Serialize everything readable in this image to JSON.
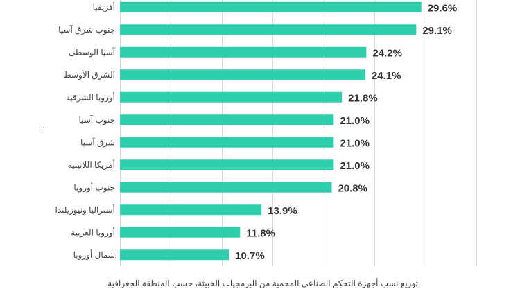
{
  "colors": {
    "bar": "#2fcfad",
    "grid": "#d9d9d9",
    "label": "#404040",
    "value": "#333333"
  },
  "caption": "توزيع نسب أجهزة التحكم الصناعي المحمية من البرمجيات الخبيثة، حسب المنطقة الجغرافية",
  "chart_data": {
    "type": "bar",
    "orientation": "horizontal",
    "categories": [
      "أفريقيا",
      "جنوب شرق آسيا",
      "آسيا الوسطى",
      "الشرق الأوسط",
      "أوروبا الشرقية",
      "جنوب آسيا",
      "شرق آسيا",
      "أمريكا اللاتينية",
      "جنوب أوروبا",
      "أستراليا ونيوزيلندا",
      "أوروبا الغربية",
      "شمال أوروبا"
    ],
    "values": [
      29.6,
      29.1,
      24.2,
      24.1,
      21.8,
      21.0,
      21.0,
      21.0,
      20.8,
      13.9,
      11.8,
      10.7
    ],
    "value_labels": [
      "29.6%",
      "29.1%",
      "24.2%",
      "24.1%",
      "21.8%",
      "21.0%",
      "21.0%",
      "21.0%",
      "20.8%",
      "13.9%",
      "11.8%",
      "10.7%"
    ],
    "unit": "%",
    "xlim": [
      0,
      35
    ],
    "grid": true,
    "legend": "none"
  }
}
